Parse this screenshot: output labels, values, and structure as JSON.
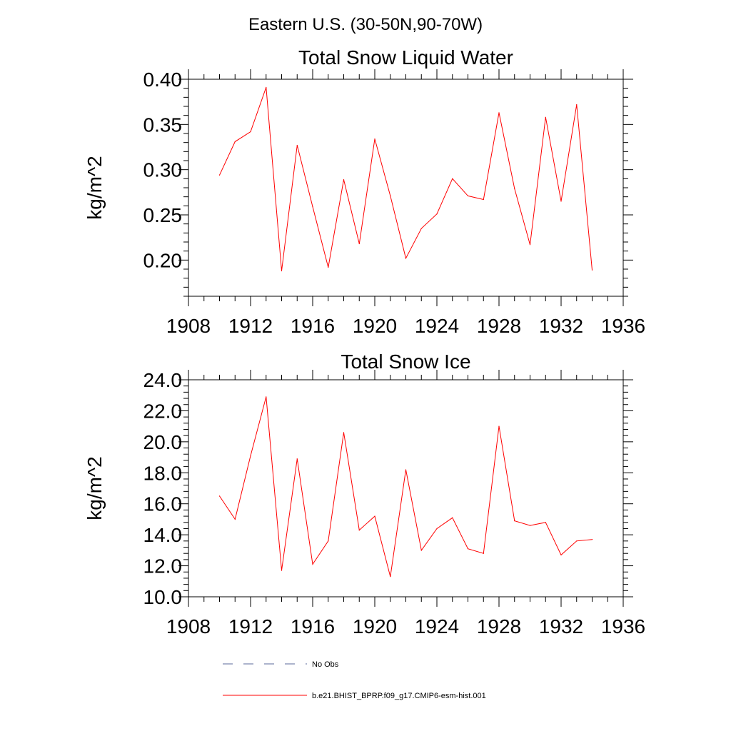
{
  "figure_title": "Eastern U.S. (30-50N,90-70W)",
  "legend": [
    {
      "label": "No Obs",
      "color": "#5a6a9a",
      "style": "dashed"
    },
    {
      "label": "b.e21.BHIST_BPRP.f09_g17.CMIP6-esm-hist.001",
      "color": "#ff0000",
      "style": "solid"
    }
  ],
  "chart_data": [
    {
      "type": "line",
      "title": "Total Snow Liquid Water",
      "xlabel": "",
      "ylabel": "kg/m^2",
      "xlim": [
        1908,
        1936
      ],
      "ylim": [
        0.16,
        0.4
      ],
      "x_ticks": [
        1908,
        1912,
        1916,
        1920,
        1924,
        1928,
        1932,
        1936
      ],
      "y_ticks": [
        0.2,
        0.25,
        0.3,
        0.35,
        0.4
      ],
      "y_tick_labels": [
        "0.20",
        "0.25",
        "0.30",
        "0.35",
        "0.40"
      ],
      "grid": false,
      "series": [
        {
          "name": "b.e21.BHIST_BPRP.f09_g17.CMIP6-esm-hist.001",
          "color": "#ff0000",
          "x": [
            1910,
            1911,
            1912,
            1913,
            1914,
            1915,
            1916,
            1917,
            1918,
            1919,
            1920,
            1921,
            1922,
            1923,
            1924,
            1925,
            1926,
            1927,
            1928,
            1929,
            1930,
            1931,
            1932,
            1933,
            1934
          ],
          "values": [
            0.294,
            0.331,
            0.342,
            0.391,
            0.188,
            0.327,
            0.259,
            0.192,
            0.289,
            0.218,
            0.334,
            0.271,
            0.202,
            0.235,
            0.251,
            0.29,
            0.271,
            0.267,
            0.363,
            0.279,
            0.217,
            0.358,
            0.265,
            0.372,
            0.189
          ]
        }
      ]
    },
    {
      "type": "line",
      "title": "Total Snow Ice",
      "xlabel": "",
      "ylabel": "kg/m^2",
      "xlim": [
        1908,
        1936
      ],
      "ylim": [
        10.0,
        24.0
      ],
      "x_ticks": [
        1908,
        1912,
        1916,
        1920,
        1924,
        1928,
        1932,
        1936
      ],
      "y_ticks": [
        10.0,
        12.0,
        14.0,
        16.0,
        18.0,
        20.0,
        22.0,
        24.0
      ],
      "y_tick_labels": [
        "10.0",
        "12.0",
        "14.0",
        "16.0",
        "18.0",
        "20.0",
        "22.0",
        "24.0"
      ],
      "grid": false,
      "series": [
        {
          "name": "b.e21.BHIST_BPRP.f09_g17.CMIP6-esm-hist.001",
          "color": "#ff0000",
          "x": [
            1910,
            1911,
            1912,
            1913,
            1914,
            1915,
            1916,
            1917,
            1918,
            1919,
            1920,
            1921,
            1922,
            1923,
            1924,
            1925,
            1926,
            1927,
            1928,
            1929,
            1930,
            1931,
            1932,
            1933,
            1934
          ],
          "values": [
            16.5,
            15.0,
            19.1,
            22.9,
            11.7,
            18.9,
            12.1,
            13.6,
            20.6,
            14.3,
            15.2,
            11.3,
            18.2,
            13.0,
            14.4,
            15.1,
            13.1,
            12.8,
            21.0,
            14.9,
            14.6,
            14.8,
            12.7,
            13.6,
            13.7
          ]
        }
      ]
    }
  ]
}
